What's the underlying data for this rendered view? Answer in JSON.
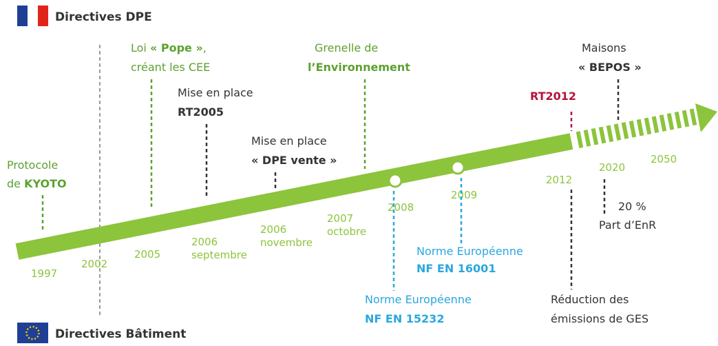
{
  "header": {
    "top_label": "Directives DPE",
    "bottom_label": "Directives Bâtiment"
  },
  "years": [
    [
      "1997"
    ],
    [
      "2002"
    ],
    [
      "2005"
    ],
    [
      "2006",
      "septembre"
    ],
    [
      "2006",
      "novembre"
    ],
    [
      "2007",
      "octobre"
    ],
    [
      "2008"
    ],
    [
      "2009"
    ],
    [
      "2012"
    ],
    [
      "2020"
    ],
    [
      "2050"
    ]
  ],
  "events": [
    {
      "color": "#5da130",
      "lines": [
        [
          {
            "text": "Protocole"
          }
        ],
        [
          {
            "text": "de "
          },
          {
            "text": "KYOTO",
            "bold": true
          }
        ]
      ]
    },
    {
      "color": "#5da130",
      "lines": [
        [
          {
            "text": "Loi "
          },
          {
            "text": "« Pope »",
            "bold": true
          },
          {
            "text": ","
          }
        ],
        [
          {
            "text": "créant les CEE"
          }
        ]
      ]
    },
    {
      "color": "#333333",
      "lines": [
        [
          {
            "text": "Mise en place"
          }
        ],
        [
          {
            "text": "RT2005",
            "bold": true
          }
        ]
      ]
    },
    {
      "color": "#333333",
      "lines": [
        [
          {
            "text": "Mise en place"
          }
        ],
        [
          {
            "text": "« DPE vente »",
            "bold": true
          }
        ]
      ]
    },
    {
      "color": "#5da130",
      "lines": [
        [
          {
            "text": "Grenelle de"
          }
        ],
        [
          {
            "text": "l’Environnement",
            "bold": true
          }
        ]
      ]
    },
    {
      "color": "#333333",
      "lines": [
        [
          {
            "text": "Maisons"
          }
        ],
        [
          {
            "text": "« BEPOS »",
            "bold": true
          }
        ]
      ]
    },
    {
      "color": "#b5123c",
      "lines": [
        [
          {
            "text": "RT2012",
            "bold": true
          }
        ]
      ]
    },
    {
      "color": "#2aa7df",
      "lines": [
        [
          {
            "text": "Norme Européenne"
          }
        ],
        [
          {
            "text": "NF EN 16001",
            "bold": true
          }
        ]
      ]
    },
    {
      "color": "#2aa7df",
      "lines": [
        [
          {
            "text": "Norme Européenne"
          }
        ],
        [
          {
            "text": "NF EN 15232",
            "bold": true
          }
        ]
      ]
    },
    {
      "color": "#333333",
      "lines": [
        [
          {
            "text": "Réduction des"
          }
        ],
        [
          {
            "text": "émissions de GES"
          }
        ]
      ]
    },
    {
      "color": "#333333",
      "lines": [
        [
          {
            "text": "20 %"
          }
        ],
        [
          {
            "text": "Part d’EnR"
          }
        ]
      ]
    }
  ]
}
